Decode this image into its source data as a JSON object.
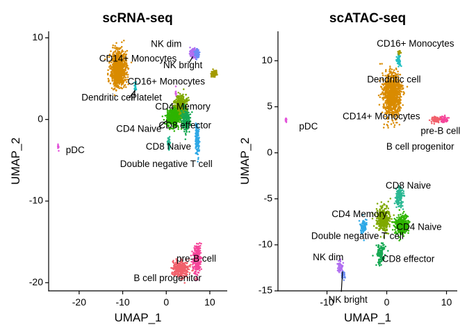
{
  "colors": {
    "CD14+ Monocytes": "#D98B00",
    "CD16+ Monocytes": "#A39A00",
    "CD4 Memory": "#7FA800",
    "CD4 Naive": "#2DB400",
    "CD8 Naive": "#2BB893",
    "CD8 effector": "#16A852",
    "Double negative T cell": "#2EA8E6",
    "NK dim": "#B06EF0",
    "NK bright": "#6B8CF5",
    "Dendritic cell": "#22BFC2",
    "Platelet": "#D95BE0",
    "pDC": "#E24FD9",
    "pre-B cell": "#F5459A",
    "B cell progenitor": "#F1606B"
  },
  "chart_data": [
    {
      "type": "scatter",
      "title": "scRNA-seq",
      "xlabel": "UMAP_1",
      "ylabel": "UMAP_2",
      "xlim": [
        -27,
        14
      ],
      "ylim": [
        -21,
        10.8
      ],
      "xticks": [
        -20,
        -10,
        0,
        10
      ],
      "yticks": [
        -20,
        -10,
        0,
        10
      ],
      "grid": false,
      "clusters": [
        {
          "name": "CD14+ Monocytes",
          "center": [
            -11,
            6.2
          ],
          "spread": [
            1.6,
            2.0
          ],
          "n": 900
        },
        {
          "name": "NK dim",
          "center": [
            6.3,
            8.1
          ],
          "spread": [
            0.8,
            0.5
          ],
          "n": 120
        },
        {
          "name": "NK bright",
          "center": [
            7.1,
            8.0
          ],
          "spread": [
            0.5,
            0.5
          ],
          "n": 80
        },
        {
          "name": "CD16+ Monocytes",
          "center": [
            11.0,
            5.6
          ],
          "spread": [
            0.6,
            0.4
          ],
          "n": 90
        },
        {
          "name": "Dendritic cell",
          "center": [
            -7.1,
            4.0
          ],
          "spread": [
            0.2,
            0.5
          ],
          "n": 25
        },
        {
          "name": "Platelet",
          "center": [
            2.2,
            3.1
          ],
          "spread": [
            0.15,
            0.8
          ],
          "n": 12
        },
        {
          "name": "CD4 Memory",
          "center": [
            3.3,
            1.5
          ],
          "spread": [
            1.3,
            1.2
          ],
          "n": 500
        },
        {
          "name": "CD4 Naive",
          "center": [
            1.5,
            0.2
          ],
          "spread": [
            1.3,
            1.0
          ],
          "n": 400
        },
        {
          "name": "CD8 effector",
          "center": [
            4.5,
            0.0
          ],
          "spread": [
            1.0,
            1.2
          ],
          "n": 200
        },
        {
          "name": "CD8 Naive",
          "center": [
            0.6,
            -3.0
          ],
          "spread": [
            0.3,
            0.6
          ],
          "n": 80
        },
        {
          "name": "Double negative T cell",
          "center": [
            7.1,
            -2.5
          ],
          "spread": [
            0.4,
            1.7
          ],
          "n": 150
        },
        {
          "name": "pDC",
          "center": [
            -24.8,
            -3.4
          ],
          "spread": [
            0.2,
            0.3
          ],
          "n": 12
        },
        {
          "name": "pre-B cell",
          "center": [
            7.1,
            -17.0
          ],
          "spread": [
            0.8,
            1.6
          ],
          "n": 280
        },
        {
          "name": "B cell progenitor",
          "center": [
            3.3,
            -18.3
          ],
          "spread": [
            1.7,
            0.9
          ],
          "n": 280
        }
      ],
      "labels": [
        {
          "text": "CD14+ Monocytes",
          "x": -6.5,
          "y": 7.4
        },
        {
          "text": "NK dim",
          "x": 0.0,
          "y": 9.2
        },
        {
          "text": "NK bright",
          "x": 3.8,
          "y": 6.6
        },
        {
          "text": "CD16+ Monocytes",
          "x": 0.0,
          "y": 4.6
        },
        {
          "text": "Dendritic cell",
          "x": -13.3,
          "y": 2.6
        },
        {
          "text": "Platelet",
          "x": -4.6,
          "y": 2.6
        },
        {
          "text": "CD4 Memory",
          "x": 3.8,
          "y": 1.5
        },
        {
          "text": "CD4 Naive",
          "x": -6.3,
          "y": -1.2
        },
        {
          "text": "CD8 effector",
          "x": 4.3,
          "y": -0.8
        },
        {
          "text": "CD8 Naive",
          "x": 0.5,
          "y": -3.4
        },
        {
          "text": "Double negative T cell",
          "x": 0.0,
          "y": -5.5
        },
        {
          "text": "pDC",
          "x": -20.9,
          "y": -3.8
        },
        {
          "text": "pre-B cell",
          "x": 6.9,
          "y": -17.1
        },
        {
          "text": "B cell progenitor",
          "x": 0.3,
          "y": -19.5
        }
      ]
    },
    {
      "type": "scatter",
      "title": "scATAC-seq",
      "xlabel": "UMAP_1",
      "ylabel": "UMAP_2",
      "xlim": [
        -18.2,
        11.8
      ],
      "ylim": [
        -15,
        13.2
      ],
      "xticks": [
        -10,
        0,
        10
      ],
      "yticks": [
        -15,
        -10,
        -5,
        0,
        5,
        10
      ],
      "grid": false,
      "clusters": [
        {
          "name": "CD14+ Monocytes",
          "center": [
            0.9,
            6.2
          ],
          "spread": [
            1.4,
            2.2
          ],
          "n": 900
        },
        {
          "name": "Dendritic cell",
          "center": [
            2.0,
            10.0
          ],
          "spread": [
            0.3,
            0.5
          ],
          "n": 50
        },
        {
          "name": "CD16+ Monocytes",
          "center": [
            2.1,
            10.9
          ],
          "spread": [
            0.2,
            0.2
          ],
          "n": 20
        },
        {
          "name": "pre-B cell",
          "center": [
            9.6,
            3.6
          ],
          "spread": [
            0.5,
            0.3
          ],
          "n": 70
        },
        {
          "name": "B cell progenitor",
          "center": [
            8.1,
            3.6
          ],
          "spread": [
            0.6,
            0.3
          ],
          "n": 60
        },
        {
          "name": "pDC",
          "center": [
            -16.8,
            3.5
          ],
          "spread": [
            0.12,
            0.2
          ],
          "n": 8
        },
        {
          "name": "CD8 Naive",
          "center": [
            2.1,
            -4.8
          ],
          "spread": [
            0.6,
            1.0
          ],
          "n": 140
        },
        {
          "name": "CD4 Memory",
          "center": [
            -0.6,
            -7.2
          ],
          "spread": [
            1.0,
            1.2
          ],
          "n": 350
        },
        {
          "name": "CD4 Naive",
          "center": [
            2.5,
            -7.8
          ],
          "spread": [
            1.1,
            1.0
          ],
          "n": 300
        },
        {
          "name": "Double negative T cell",
          "center": [
            -3.9,
            -8.0
          ],
          "spread": [
            0.5,
            0.8
          ],
          "n": 90
        },
        {
          "name": "CD8 effector",
          "center": [
            -1.0,
            -11.0
          ],
          "spread": [
            0.6,
            1.0
          ],
          "n": 120
        },
        {
          "name": "NK dim",
          "center": [
            -7.8,
            -12.3
          ],
          "spread": [
            0.4,
            0.6
          ],
          "n": 50
        },
        {
          "name": "NK bright",
          "center": [
            -7.3,
            -13.3
          ],
          "spread": [
            0.3,
            0.4
          ],
          "n": 30
        }
      ],
      "labels": [
        {
          "text": "CD16+ Monocytes",
          "x": 4.8,
          "y": 11.8
        },
        {
          "text": "Dendritic cell",
          "x": 1.2,
          "y": 7.9
        },
        {
          "text": "CD14+ Monocytes",
          "x": -0.9,
          "y": 3.9
        },
        {
          "text": "pre-B cell",
          "x": 9.0,
          "y": 2.3
        },
        {
          "text": "pDC",
          "x": -13.1,
          "y": 2.8
        },
        {
          "text": "B cell progenitor",
          "x": 5.6,
          "y": 0.6
        },
        {
          "text": "CD8 Naive",
          "x": 3.6,
          "y": -3.6
        },
        {
          "text": "CD4 Memory",
          "x": -4.6,
          "y": -6.7
        },
        {
          "text": "CD4 Naive",
          "x": 5.4,
          "y": -8.1
        },
        {
          "text": "Double negative T cell",
          "x": -4.9,
          "y": -9.1
        },
        {
          "text": "CD8 effector",
          "x": 3.6,
          "y": -11.6
        },
        {
          "text": "NK dim",
          "x": -9.8,
          "y": -11.4
        },
        {
          "text": "NK bright",
          "x": -6.5,
          "y": -16.0
        }
      ]
    }
  ]
}
